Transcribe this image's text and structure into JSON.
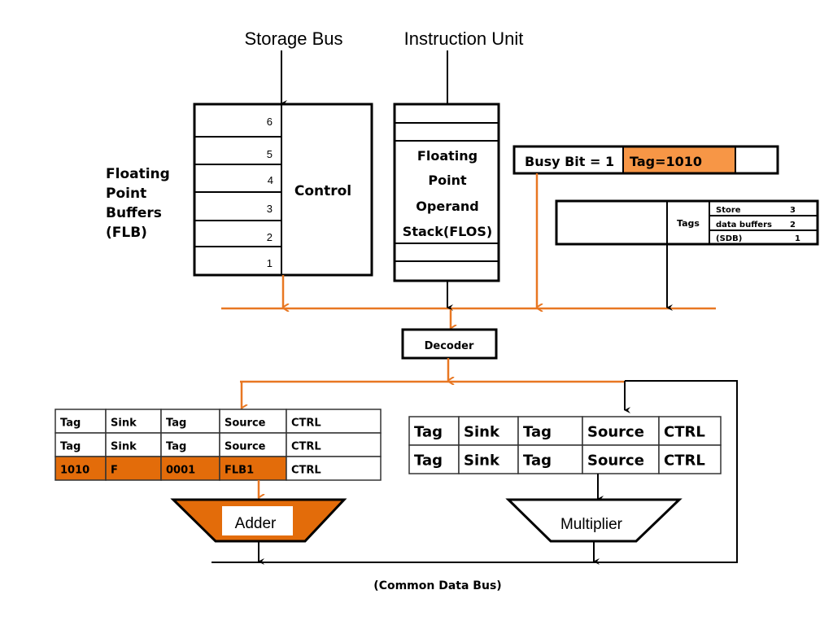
{
  "labels": {
    "storage_bus": "Storage Bus",
    "instruction_unit": "Instruction Unit",
    "flb": [
      "Floating",
      "Point",
      "Buffers",
      "(FLB)"
    ],
    "flb_slots": [
      "6",
      "5",
      "4",
      "3",
      "2",
      "1"
    ],
    "control": "Control",
    "flos": [
      "Floating",
      "Point",
      "Operand",
      "Stack(FLOS)"
    ],
    "busy_bit": "Busy Bit = 1",
    "tag": "Tag=1010",
    "tags": "Tags",
    "sdb_rows": [
      {
        "name": "Store",
        "num": "3"
      },
      {
        "name": "data buffers",
        "num": "2"
      },
      {
        "name": "(SDB)",
        "num": "1"
      }
    ],
    "decoder": "Decoder",
    "adder": "Adder",
    "multiplier": "Multiplier",
    "common_data_bus": "(Common Data Bus)"
  },
  "adder_station": [
    [
      "Tag",
      "Sink",
      "Tag",
      "Source",
      "CTRL"
    ],
    [
      "Tag",
      "Sink",
      "Tag",
      "Source",
      "CTRL"
    ],
    [
      "1010",
      "F",
      "0001",
      "FLB1",
      "CTRL"
    ]
  ],
  "multiplier_station": [
    [
      "Tag",
      "Sink",
      "Tag",
      "Source",
      "CTRL"
    ],
    [
      "Tag",
      "Sink",
      "Tag",
      "Source",
      "CTRL"
    ]
  ],
  "colors": {
    "bus_orange": "#e87722",
    "highlight_orange": "#e36c0a",
    "tag_orange": "#f79646"
  }
}
